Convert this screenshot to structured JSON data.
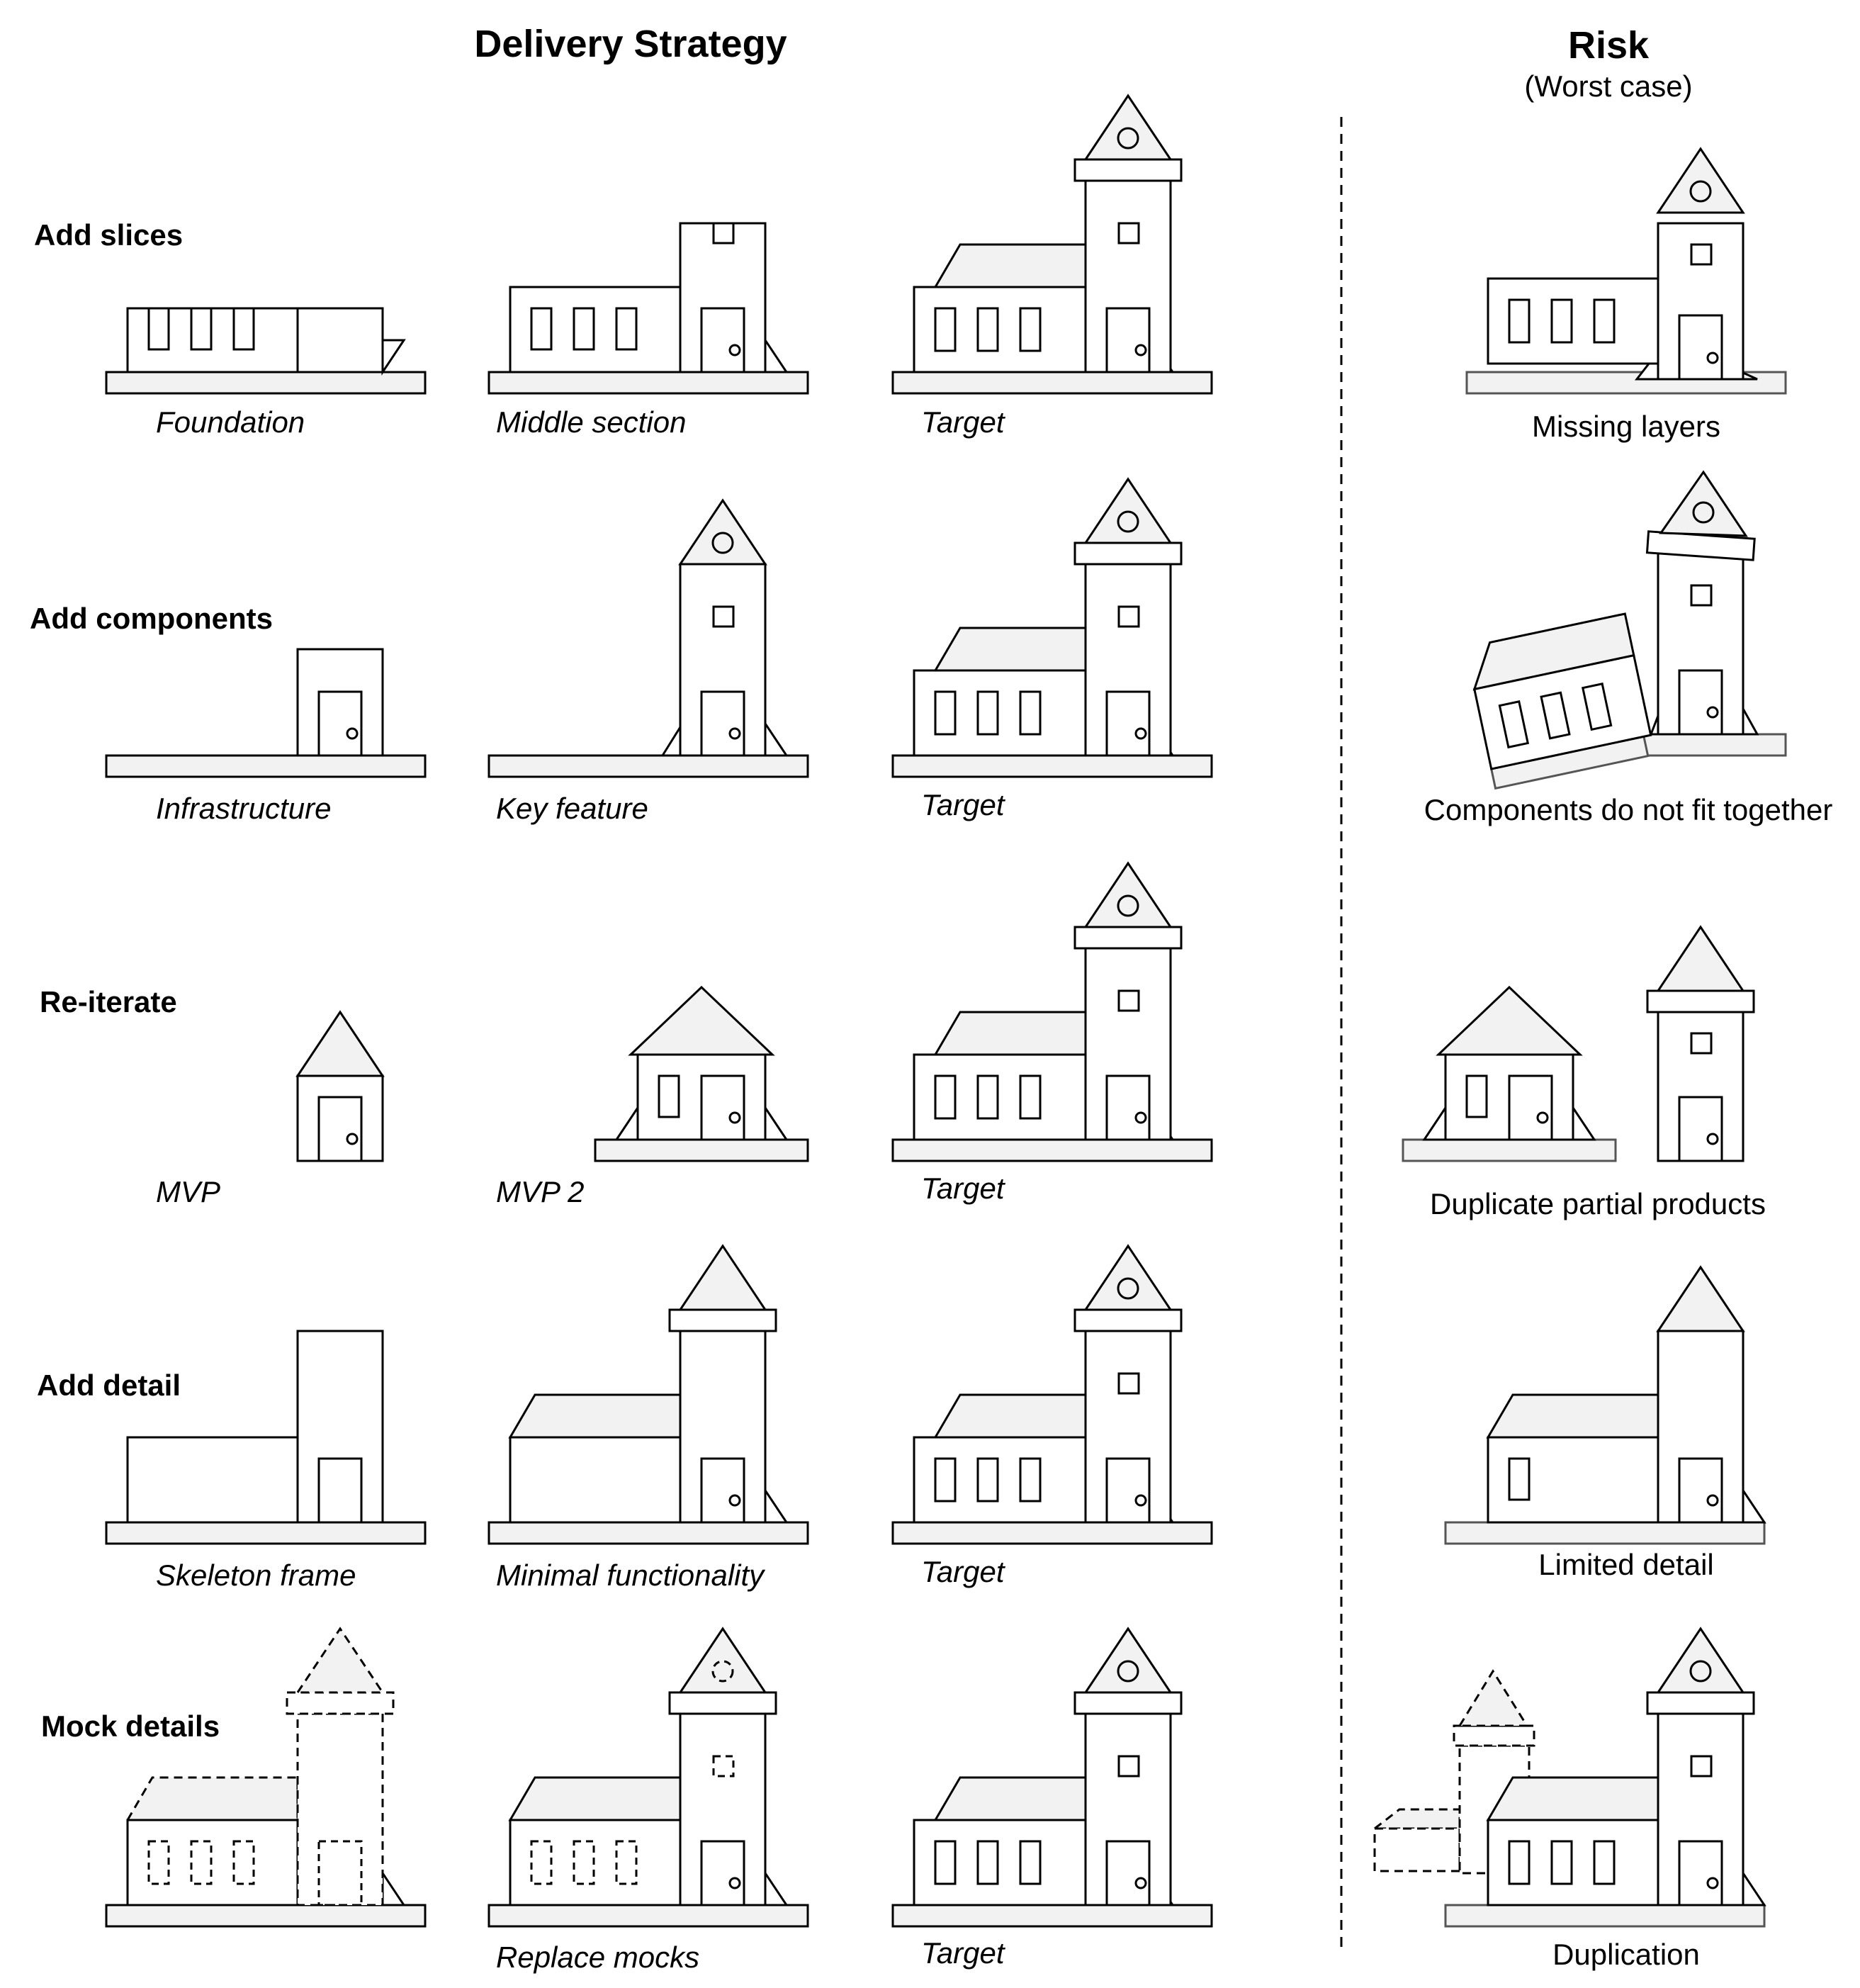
{
  "header": {
    "title": "Delivery Strategy"
  },
  "risk_header": {
    "title": "Risk",
    "subtitle": "(Worst case)"
  },
  "rows": [
    {
      "label": "Add slices",
      "captions": [
        "Foundation",
        "Middle section",
        "Target"
      ],
      "risk": "Missing layers"
    },
    {
      "label": "Add components",
      "captions": [
        "Infrastructure",
        "Key feature",
        "Target"
      ],
      "risk": "Components do not fit together"
    },
    {
      "label": "Re-iterate",
      "captions": [
        "MVP",
        "MVP 2",
        "Target"
      ],
      "risk": "Duplicate partial products"
    },
    {
      "label": "Add detail",
      "captions": [
        "Skeleton frame",
        "Minimal functionality",
        "Target"
      ],
      "risk": "Limited detail"
    },
    {
      "label": "Mock details",
      "captions": [
        "",
        "Replace mocks",
        "Target"
      ],
      "risk": "Duplication"
    }
  ]
}
